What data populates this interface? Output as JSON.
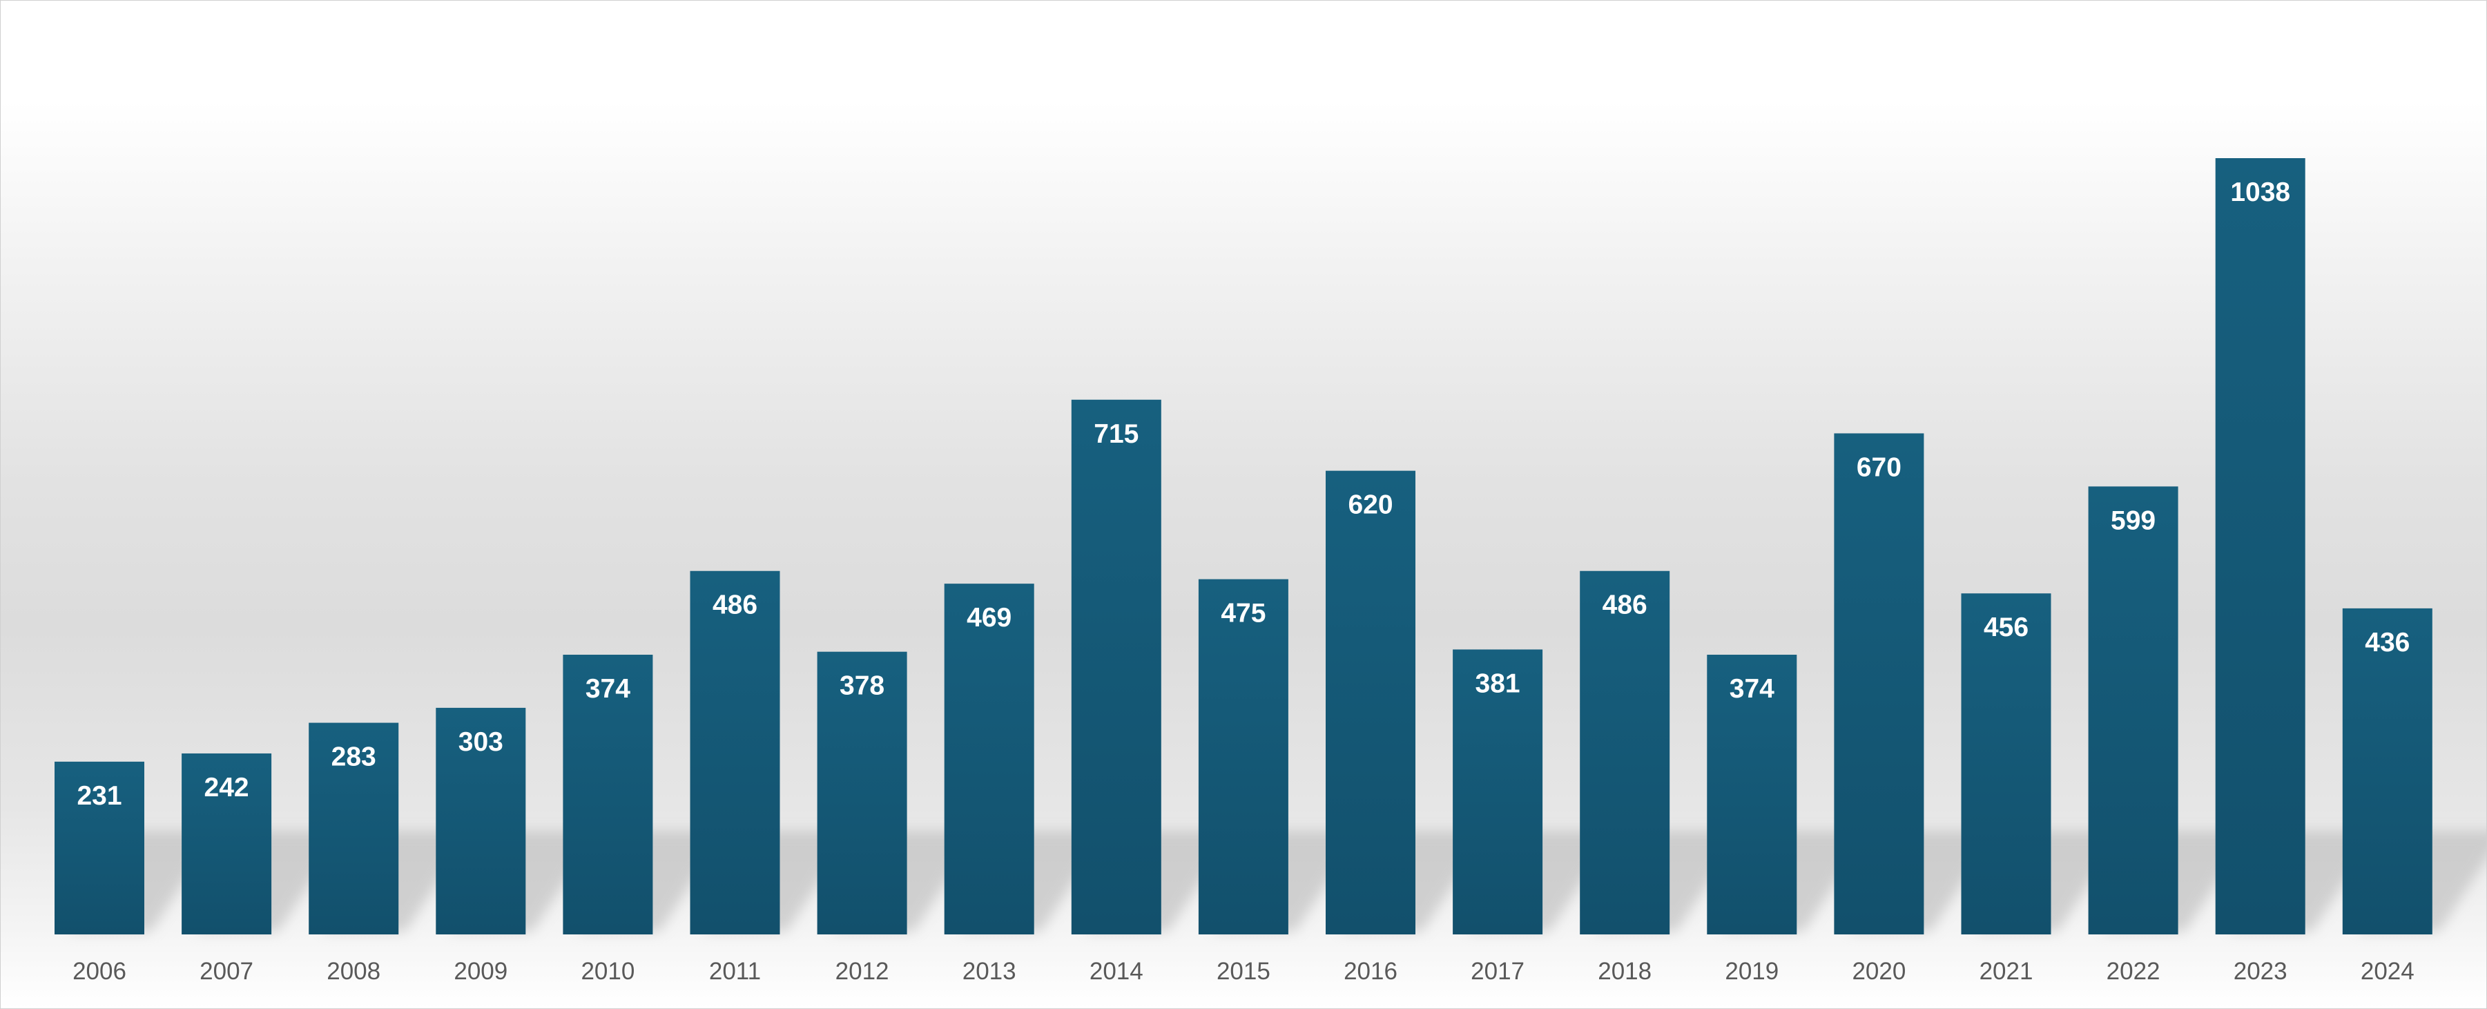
{
  "chart_data": {
    "type": "bar",
    "title": "",
    "xlabel": "",
    "ylabel": "",
    "categories": [
      "2006",
      "2007",
      "2008",
      "2009",
      "2010",
      "2011",
      "2012",
      "2013",
      "2014",
      "2015",
      "2016",
      "2017",
      "2018",
      "2019",
      "2020",
      "2021",
      "2022",
      "2023",
      "2024"
    ],
    "values": [
      231,
      242,
      283,
      303,
      374,
      486,
      378,
      469,
      715,
      475,
      620,
      381,
      486,
      374,
      670,
      456,
      599,
      1038,
      436
    ],
    "ylim": [
      0,
      1250
    ],
    "grid": false,
    "legend": "none",
    "data_labels": "inside-top",
    "colors": {
      "bar_top": "#17607f",
      "bar_bottom": "#12506c",
      "label": "#ffffff",
      "tick": "#595959",
      "shadow": "#b5b5b5"
    }
  }
}
